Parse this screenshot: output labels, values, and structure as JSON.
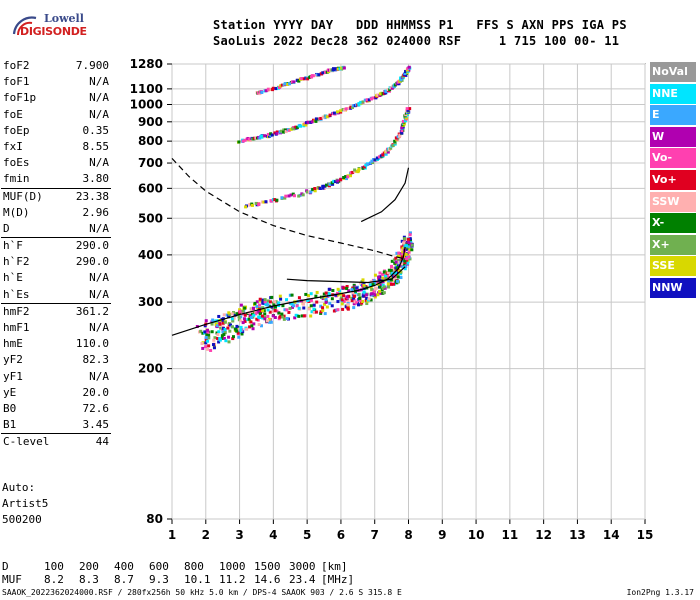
{
  "logo": {
    "top": "Lowell",
    "bottom": "DIGISONDE"
  },
  "header": {
    "line1": "Station YYYY DAY   DDD HHMMSS P1   FFS S AXN PPS IGA PS",
    "line2": "SaoLuis 2022 Dec28 362 024000 RSF     1 715 100 00- 11"
  },
  "params": [
    {
      "label": "foF2",
      "value": "7.900"
    },
    {
      "label": "foF1",
      "value": "N/A"
    },
    {
      "label": "foF1p",
      "value": "N/A"
    },
    {
      "label": "foE",
      "value": "N/A"
    },
    {
      "label": "foEp",
      "value": "0.35"
    },
    {
      "label": "fxI",
      "value": "8.55"
    },
    {
      "label": "foEs",
      "value": "N/A"
    },
    {
      "label": "fmin",
      "value": "3.80"
    },
    {
      "label": "MUF(D)",
      "value": "23.38"
    },
    {
      "label": "M(D)",
      "value": "2.96"
    },
    {
      "label": "D",
      "value": "N/A"
    },
    {
      "label": "h`F",
      "value": "290.0"
    },
    {
      "label": "h`F2",
      "value": "290.0"
    },
    {
      "label": "h`E",
      "value": "N/A"
    },
    {
      "label": "h`Es",
      "value": "N/A"
    },
    {
      "label": "hmF2",
      "value": "361.2"
    },
    {
      "label": "hmF1",
      "value": "N/A"
    },
    {
      "label": "hmE",
      "value": "110.0"
    },
    {
      "label": "yF2",
      "value": "82.3"
    },
    {
      "label": "yF1",
      "value": "N/A"
    },
    {
      "label": "yE",
      "value": "20.0"
    },
    {
      "label": "B0",
      "value": "72.6"
    },
    {
      "label": "B1",
      "value": "3.45"
    },
    {
      "label": "C-level",
      "value": "44"
    }
  ],
  "auto": {
    "line1": "Auto:",
    "line2": "Artist5",
    "line3": "500200"
  },
  "legend": [
    {
      "name": "NoVal",
      "color": "#999999"
    },
    {
      "name": "NNE",
      "color": "#00e5ff"
    },
    {
      "name": "E",
      "color": "#3aa8ff"
    },
    {
      "name": "W",
      "color": "#b000b0"
    },
    {
      "name": "Vo-",
      "color": "#ff40b0"
    },
    {
      "name": "Vo+",
      "color": "#e00020"
    },
    {
      "name": "SSW",
      "color": "#ffb0b0"
    },
    {
      "name": "X-",
      "color": "#008000"
    },
    {
      "name": "X+",
      "color": "#70b050"
    },
    {
      "name": "SSE",
      "color": "#d8d800"
    },
    {
      "name": "NNW",
      "color": "#1010c0"
    }
  ],
  "muf_table": {
    "d_label": "D",
    "d_values": [
      "100",
      "200",
      "400",
      "600",
      "800",
      "1000",
      "1500",
      "3000"
    ],
    "d_unit": "[km]",
    "m_label": "MUF",
    "m_values": [
      "8.2",
      "8.3",
      "8.7",
      "9.3",
      "10.1",
      "11.2",
      "14.6",
      "23.4"
    ],
    "m_unit": "[MHz]"
  },
  "footer": {
    "text": "SAAOK_2022362024000.RSF / 280fx256h 50 kHz 5.0 km / DPS-4 SAAOK 903 / 2.6 S 315.8 E",
    "version": "Ion2Png 1.3.17"
  },
  "chart_data": {
    "type": "scatter",
    "xlim": [
      1,
      15
    ],
    "x_ticks": [
      "1",
      "2",
      "3",
      "4",
      "5",
      "6",
      "7",
      "8",
      "9",
      "10",
      "11",
      "12",
      "13",
      "14",
      "15"
    ],
    "ylim": [
      80,
      1280
    ],
    "y_ticks": [
      "80",
      "200",
      "300",
      "400",
      "500",
      "600",
      "700",
      "800",
      "900",
      "1000",
      "1100",
      "1280"
    ],
    "y_scale": "log",
    "grid": true,
    "series": [
      {
        "name": "",
        "color": "#000000",
        "style": "solid",
        "points": [
          [
            1,
            245
          ],
          [
            2,
            262
          ],
          [
            3,
            278
          ],
          [
            4,
            293
          ],
          [
            5,
            305
          ],
          [
            6,
            316
          ],
          [
            6.5,
            322
          ],
          [
            7,
            332
          ],
          [
            7.4,
            346
          ],
          [
            7.7,
            368
          ],
          [
            7.85,
            395
          ],
          [
            7.9,
            420
          ]
        ]
      },
      {
        "name": "",
        "color": "#000000",
        "style": "dashed",
        "points": [
          [
            1,
            720
          ],
          [
            1.5,
            645
          ],
          [
            2,
            590
          ],
          [
            3,
            520
          ],
          [
            4,
            478
          ],
          [
            5,
            450
          ],
          [
            6,
            430
          ],
          [
            7,
            410
          ],
          [
            7.5,
            398
          ],
          [
            7.9,
            390
          ]
        ]
      },
      {
        "name": "",
        "color": "#000000",
        "style": "solid",
        "points": [
          [
            4.4,
            345
          ],
          [
            5,
            342
          ],
          [
            6,
            340
          ],
          [
            6.8,
            338
          ],
          [
            7.5,
            345
          ],
          [
            7.9,
            372
          ]
        ]
      },
      {
        "name": "",
        "color": "#000000",
        "style": "solid",
        "points": [
          [
            6.6,
            490
          ],
          [
            7.2,
            520
          ],
          [
            7.6,
            560
          ],
          [
            7.9,
            620
          ],
          [
            8.0,
            680
          ]
        ]
      }
    ],
    "echo_traces": [
      {
        "name": "F2 1st hop",
        "points": [
          [
            1.9,
            240
          ],
          [
            2.5,
            255
          ],
          [
            3,
            268
          ],
          [
            3.5,
            280
          ],
          [
            4,
            288
          ],
          [
            5,
            296
          ],
          [
            6,
            306
          ],
          [
            6.5,
            314
          ],
          [
            7,
            328
          ],
          [
            7.4,
            346
          ],
          [
            7.7,
            370
          ],
          [
            7.9,
            400
          ],
          [
            8,
            440
          ]
        ]
      },
      {
        "name": "F2 2nd hop",
        "points": [
          [
            3.2,
            540
          ],
          [
            4,
            558
          ],
          [
            5,
            585
          ],
          [
            5.5,
            605
          ],
          [
            6,
            632
          ],
          [
            6.5,
            670
          ],
          [
            7,
            710
          ],
          [
            7.3,
            740
          ],
          [
            7.6,
            790
          ],
          [
            7.8,
            850
          ],
          [
            7.9,
            920
          ],
          [
            8.0,
            970
          ]
        ]
      },
      {
        "name": "F2 3rd hop",
        "points": [
          [
            3,
            800
          ],
          [
            3.5,
            815
          ],
          [
            4,
            835
          ],
          [
            4.5,
            860
          ],
          [
            5,
            890
          ],
          [
            5.5,
            925
          ],
          [
            6,
            960
          ],
          [
            6.5,
            1000
          ],
          [
            7,
            1045
          ],
          [
            7.4,
            1090
          ],
          [
            7.7,
            1140
          ],
          [
            7.9,
            1200
          ],
          [
            8.0,
            1250
          ]
        ]
      },
      {
        "name": "F2 4th hop",
        "points": [
          [
            3.5,
            1070
          ],
          [
            4,
            1100
          ],
          [
            4.5,
            1140
          ],
          [
            5,
            1175
          ],
          [
            5.5,
            1215
          ],
          [
            5.8,
            1240
          ],
          [
            6.1,
            1250
          ]
        ]
      }
    ]
  }
}
